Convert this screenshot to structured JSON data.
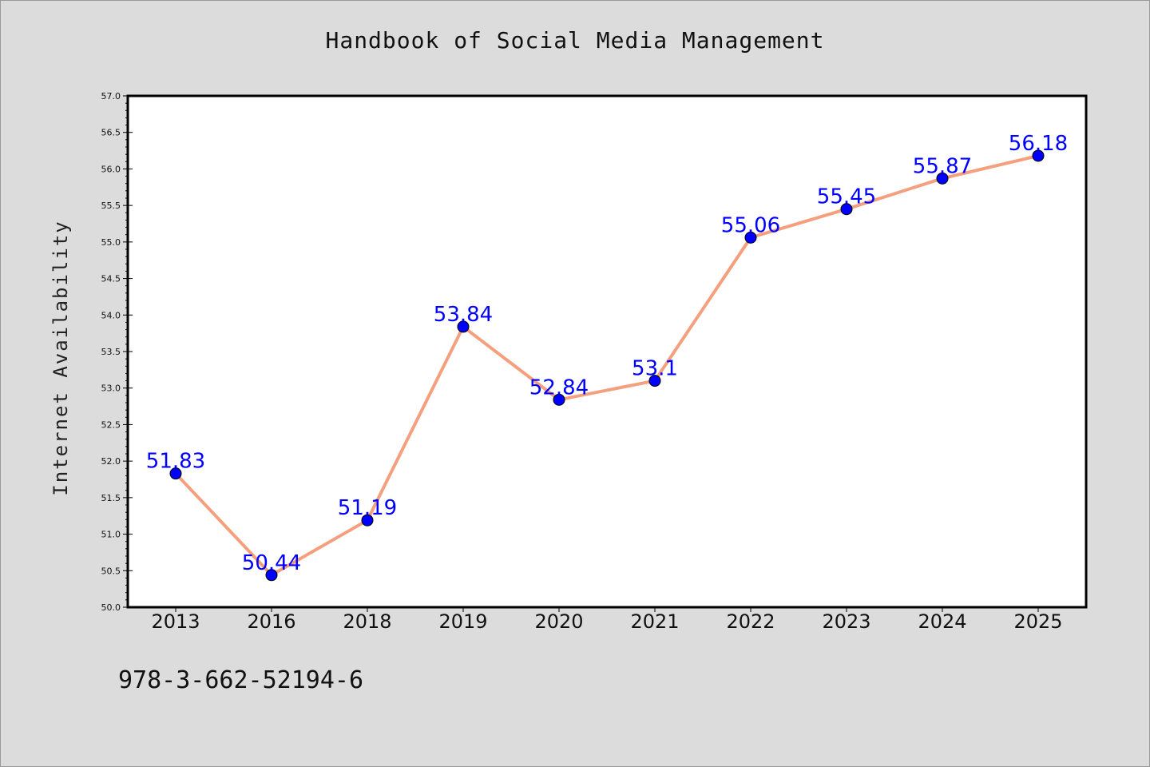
{
  "chart_data": {
    "type": "line",
    "title": "Handbook of Social Media Management",
    "xlabel": "",
    "ylabel": "Internet Availability",
    "categories": [
      "2013",
      "2016",
      "2018",
      "2019",
      "2020",
      "2021",
      "2022",
      "2023",
      "2024",
      "2025"
    ],
    "series": [
      {
        "values": [
          51.83,
          50.44,
          51.19,
          53.84,
          52.84,
          53.1,
          55.06,
          55.45,
          55.87,
          56.18
        ]
      }
    ],
    "data_labels": [
      "51.83",
      "50.44",
      "51.19",
      "53.84",
      "52.84",
      "53.1",
      "55.06",
      "55.45",
      "55.87",
      "56.18"
    ],
    "ylim": [
      50.0,
      57.0
    ],
    "y_ticks": [
      "50.0",
      "50.5",
      "51.0",
      "51.5",
      "52.0",
      "52.5",
      "53.0",
      "53.5",
      "54.0",
      "54.5",
      "55.0",
      "55.5",
      "56.0",
      "56.5",
      "57.0"
    ],
    "grid": false,
    "line_color": "#f4a07f",
    "marker_color": "#0000ff",
    "label_color": "#0000ff"
  },
  "footer": {
    "isbn": "978-3-662-52194-6"
  },
  "colors": {
    "background": "#dcdcdc",
    "plot_background": "#ffffff"
  }
}
